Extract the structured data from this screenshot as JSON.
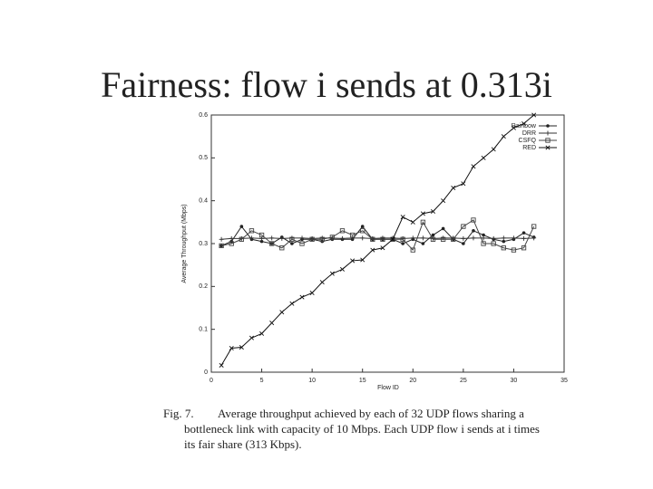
{
  "slide_title": "Fairness: flow i sends at 0.313i",
  "chart_data": {
    "type": "line",
    "x_label": "Flow ID",
    "y_label": "Average Throughput (Mbps)",
    "x": [
      1,
      2,
      3,
      4,
      5,
      6,
      7,
      8,
      9,
      10,
      11,
      12,
      13,
      14,
      15,
      16,
      17,
      18,
      19,
      20,
      21,
      22,
      23,
      24,
      25,
      26,
      27,
      28,
      29,
      30,
      31,
      32
    ],
    "xlim": [
      0,
      35
    ],
    "xticks": [
      0,
      5,
      10,
      15,
      20,
      25,
      30,
      35
    ],
    "ylim": [
      0,
      0.6
    ],
    "yticks": [
      0,
      0.1,
      0.2,
      0.3,
      0.4,
      0.5,
      0.6
    ],
    "legend": "upper right",
    "series": [
      {
        "name": "Rainbow",
        "color": "#222222",
        "marker": "dot",
        "values": [
          0.295,
          0.305,
          0.34,
          0.31,
          0.305,
          0.3,
          0.315,
          0.3,
          0.31,
          0.31,
          0.305,
          0.31,
          0.31,
          0.31,
          0.34,
          0.31,
          0.31,
          0.31,
          0.3,
          0.31,
          0.3,
          0.32,
          0.335,
          0.31,
          0.3,
          0.33,
          0.32,
          0.31,
          0.305,
          0.31,
          0.325,
          0.315
        ]
      },
      {
        "name": "DRR",
        "color": "#333333",
        "marker": "plus",
        "values": [
          0.31,
          0.312,
          0.312,
          0.313,
          0.312,
          0.313,
          0.312,
          0.313,
          0.313,
          0.312,
          0.313,
          0.313,
          0.312,
          0.313,
          0.313,
          0.312,
          0.313,
          0.313,
          0.312,
          0.313,
          0.313,
          0.312,
          0.313,
          0.313,
          0.312,
          0.313,
          0.313,
          0.312,
          0.313,
          0.313,
          0.312,
          0.313
        ]
      },
      {
        "name": "CSFQ",
        "color": "#444444",
        "marker": "square",
        "values": [
          0.295,
          0.3,
          0.31,
          0.33,
          0.32,
          0.3,
          0.29,
          0.31,
          0.3,
          0.31,
          0.31,
          0.315,
          0.33,
          0.32,
          0.33,
          0.31,
          0.31,
          0.31,
          0.31,
          0.285,
          0.35,
          0.31,
          0.31,
          0.31,
          0.34,
          0.355,
          0.3,
          0.3,
          0.29,
          0.285,
          0.29,
          0.34
        ]
      },
      {
        "name": "RED",
        "color": "#111111",
        "marker": "x",
        "values": [
          0.016,
          0.056,
          0.058,
          0.08,
          0.09,
          0.115,
          0.14,
          0.16,
          0.175,
          0.185,
          0.21,
          0.23,
          0.24,
          0.26,
          0.262,
          0.285,
          0.29,
          0.31,
          0.362,
          0.35,
          0.37,
          0.375,
          0.4,
          0.43,
          0.44,
          0.48,
          0.5,
          0.52,
          0.55,
          0.57,
          0.58,
          0.6
        ]
      }
    ]
  },
  "caption": {
    "label": "Fig. 7.",
    "lines": [
      "Average throughput achieved by each of 32 UDP flows sharing a",
      "bottleneck link with capacity of 10 Mbps. Each UDP flow i sends at i times",
      "its fair share (313 Kbps)."
    ]
  }
}
